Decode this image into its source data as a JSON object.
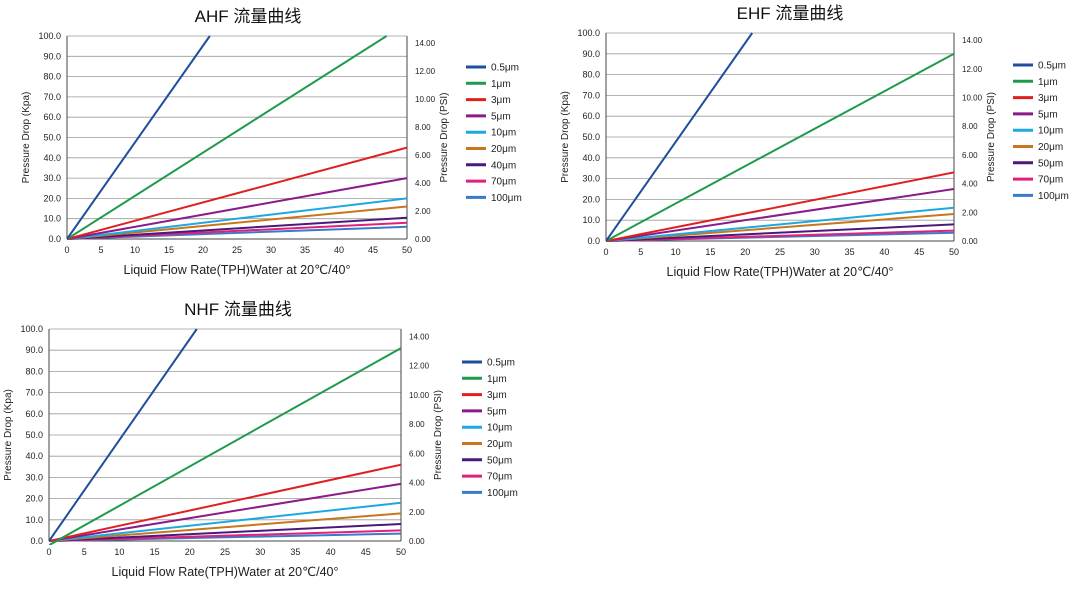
{
  "chart_data": [
    {
      "type": "line",
      "title": "AHF 流量曲线",
      "xlabel": "Liquid Flow Rate(TPH)Water  at  20℃/40°",
      "ylabel": "Pressure Drop (Kpa)",
      "y2label": "Pressure Drop (PSI)",
      "xlim": [
        0,
        50
      ],
      "ylim": [
        0,
        100
      ],
      "y2lim": [
        0,
        14.5
      ],
      "xticks": [
        "0",
        "5",
        "10",
        "15",
        "20",
        "25",
        "30",
        "35",
        "40",
        "45",
        "50"
      ],
      "yticks": [
        "0.0",
        "10.0",
        "20.0",
        "30.0",
        "40.0",
        "50.0",
        "60.0",
        "70.0",
        "80.0",
        "90.0",
        "100.0"
      ],
      "y2ticks": [
        "0.00",
        "2.00",
        "4.00",
        "6.00",
        "8.00",
        "10.00",
        "12.00",
        "14.00"
      ],
      "grid": true,
      "legend_position": "right",
      "series": [
        {
          "name": "0.5μm",
          "color": "#1f4e9c",
          "x": [
            0,
            21
          ],
          "y": [
            0,
            100
          ]
        },
        {
          "name": "1μm",
          "color": "#1f9a4a",
          "x": [
            0,
            47
          ],
          "y": [
            0,
            100
          ]
        },
        {
          "name": "3μm",
          "color": "#e02020",
          "x": [
            0,
            50
          ],
          "y": [
            0,
            45
          ]
        },
        {
          "name": "5μm",
          "color": "#8b1a8b",
          "x": [
            0,
            50
          ],
          "y": [
            0,
            30
          ]
        },
        {
          "name": "10μm",
          "color": "#1ea8e0",
          "x": [
            0,
            50
          ],
          "y": [
            0,
            20
          ]
        },
        {
          "name": "20μm",
          "color": "#c8761e",
          "x": [
            0,
            50
          ],
          "y": [
            0,
            16
          ]
        },
        {
          "name": "40μm",
          "color": "#4a1a7a",
          "x": [
            0,
            50
          ],
          "y": [
            0,
            10.5
          ]
        },
        {
          "name": "70μm",
          "color": "#e0207a",
          "x": [
            0,
            50
          ],
          "y": [
            0,
            8
          ]
        },
        {
          "name": "100μm",
          "color": "#3a7ac8",
          "x": [
            0,
            50
          ],
          "y": [
            0,
            6
          ]
        }
      ]
    },
    {
      "type": "line",
      "title": "EHF 流量曲线",
      "xlabel": "Liquid Flow Rate(TPH)Water  at  20℃/40°",
      "ylabel": "Pressure Drop (Kpa)",
      "y2label": "Pressure Drop (PSI)",
      "xlim": [
        0,
        50
      ],
      "ylim": [
        0,
        100
      ],
      "y2lim": [
        0,
        14.5
      ],
      "xticks": [
        "0",
        "5",
        "10",
        "15",
        "20",
        "25",
        "30",
        "35",
        "40",
        "45",
        "50"
      ],
      "yticks": [
        "0.0",
        "10.0",
        "20.0",
        "30.0",
        "40.0",
        "50.0",
        "60.0",
        "70.0",
        "80.0",
        "90.0",
        "100.0"
      ],
      "y2ticks": [
        "0.00",
        "2.00",
        "4.00",
        "6.00",
        "8.00",
        "10.00",
        "12.00",
        "14.00"
      ],
      "grid": true,
      "legend_position": "right",
      "series": [
        {
          "name": "0.5μm",
          "color": "#1f4e9c",
          "x": [
            0,
            21
          ],
          "y": [
            0,
            100
          ]
        },
        {
          "name": "1μm",
          "color": "#1f9a4a",
          "x": [
            0,
            50
          ],
          "y": [
            0,
            90
          ]
        },
        {
          "name": "3μm",
          "color": "#e02020",
          "x": [
            0,
            50
          ],
          "y": [
            0,
            33
          ]
        },
        {
          "name": "5μm",
          "color": "#8b1a8b",
          "x": [
            0,
            50
          ],
          "y": [
            0,
            25
          ]
        },
        {
          "name": "10μm",
          "color": "#1ea8e0",
          "x": [
            0,
            50
          ],
          "y": [
            0,
            16
          ]
        },
        {
          "name": "20μm",
          "color": "#c8761e",
          "x": [
            0,
            50
          ],
          "y": [
            0,
            13
          ]
        },
        {
          "name": "50μm",
          "color": "#4a1a7a",
          "x": [
            0,
            50
          ],
          "y": [
            0,
            8
          ]
        },
        {
          "name": "70μm",
          "color": "#e0207a",
          "x": [
            0,
            50
          ],
          "y": [
            0,
            5
          ]
        },
        {
          "name": "100μm",
          "color": "#3a7ac8",
          "x": [
            0,
            50
          ],
          "y": [
            0,
            4
          ]
        }
      ]
    },
    {
      "type": "line",
      "title": "NHF 流量曲线",
      "xlabel": "Liquid Flow Rate(TPH)Water  at  20℃/40°",
      "ylabel": "Pressure Drop (Kpa)",
      "y2label": "Pressure Drop (PSI)",
      "xlim": [
        0,
        50
      ],
      "ylim": [
        0,
        100
      ],
      "y2lim": [
        0,
        14.5
      ],
      "xticks": [
        "0",
        "5",
        "10",
        "15",
        "20",
        "25",
        "30",
        "35",
        "40",
        "45",
        "50"
      ],
      "yticks": [
        "0.0",
        "10.0",
        "20.0",
        "30.0",
        "40.0",
        "50.0",
        "60.0",
        "70.0",
        "80.0",
        "90.0",
        "100.0"
      ],
      "y2ticks": [
        "0.00",
        "2.00",
        "4.00",
        "6.00",
        "8.00",
        "10.00",
        "12.00",
        "14.00"
      ],
      "grid": true,
      "legend_position": "right",
      "series": [
        {
          "name": "0.5μm",
          "color": "#1f4e9c",
          "x": [
            0,
            21
          ],
          "y": [
            0,
            100
          ]
        },
        {
          "name": "1μm",
          "color": "#1f9a4a",
          "x": [
            0,
            50
          ],
          "y": [
            -2,
            91
          ]
        },
        {
          "name": "3μm",
          "color": "#e02020",
          "x": [
            0,
            50
          ],
          "y": [
            0,
            36
          ]
        },
        {
          "name": "5μm",
          "color": "#8b1a8b",
          "x": [
            0,
            50
          ],
          "y": [
            0,
            27
          ]
        },
        {
          "name": "10μm",
          "color": "#1ea8e0",
          "x": [
            0,
            50
          ],
          "y": [
            0,
            18
          ]
        },
        {
          "name": "20μm",
          "color": "#c8761e",
          "x": [
            0,
            50
          ],
          "y": [
            0,
            13
          ]
        },
        {
          "name": "50μm",
          "color": "#4a1a7a",
          "x": [
            0,
            50
          ],
          "y": [
            0,
            8
          ]
        },
        {
          "name": "70μm",
          "color": "#e0207a",
          "x": [
            0,
            50
          ],
          "y": [
            0,
            5
          ]
        },
        {
          "name": "100μm",
          "color": "#3a7ac8",
          "x": [
            0,
            50
          ],
          "y": [
            0,
            3.5
          ]
        }
      ]
    }
  ]
}
